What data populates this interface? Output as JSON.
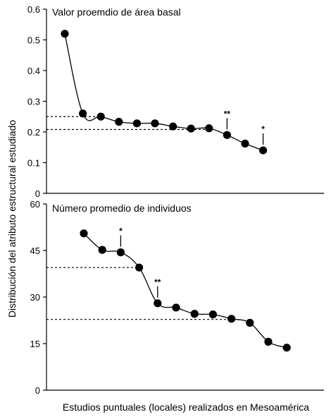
{
  "chart_data": {
    "type": "line",
    "ylabel": "Distribución del atributo estructural estudiado",
    "xlabel": "Estudios puntuales (locales) realizados en Mesoamérica",
    "panels": [
      {
        "title": "Valor proemdio de área basal",
        "ylim": [
          0,
          0.6
        ],
        "yticks": [
          "0",
          "0.1",
          "0.2",
          "0.3",
          "0.4",
          "0.5",
          "0.6"
        ],
        "values": [
          0.52,
          0.26,
          0.25,
          0.233,
          0.228,
          0.228,
          0.218,
          0.211,
          0.212,
          0.19,
          0.162,
          0.14
        ],
        "reference_lines": [
          0.25,
          0.208
        ],
        "annotations": [
          {
            "point": 9,
            "label": "**"
          },
          {
            "point": 11,
            "label": "*"
          }
        ]
      },
      {
        "title": "Número promedio de individuos",
        "ylim": [
          0,
          60
        ],
        "yticks": [
          "0",
          "15",
          "30",
          "45",
          "60"
        ],
        "values": [
          50.5,
          45.2,
          44.4,
          39.5,
          28.0,
          26.6,
          24.6,
          24.4,
          23.0,
          21.7,
          15.6,
          13.7
        ],
        "reference_lines": [
          39.5,
          22.8
        ],
        "annotations": [
          {
            "point": 2,
            "label": "*"
          },
          {
            "point": 4,
            "label": "**"
          }
        ]
      }
    ]
  }
}
